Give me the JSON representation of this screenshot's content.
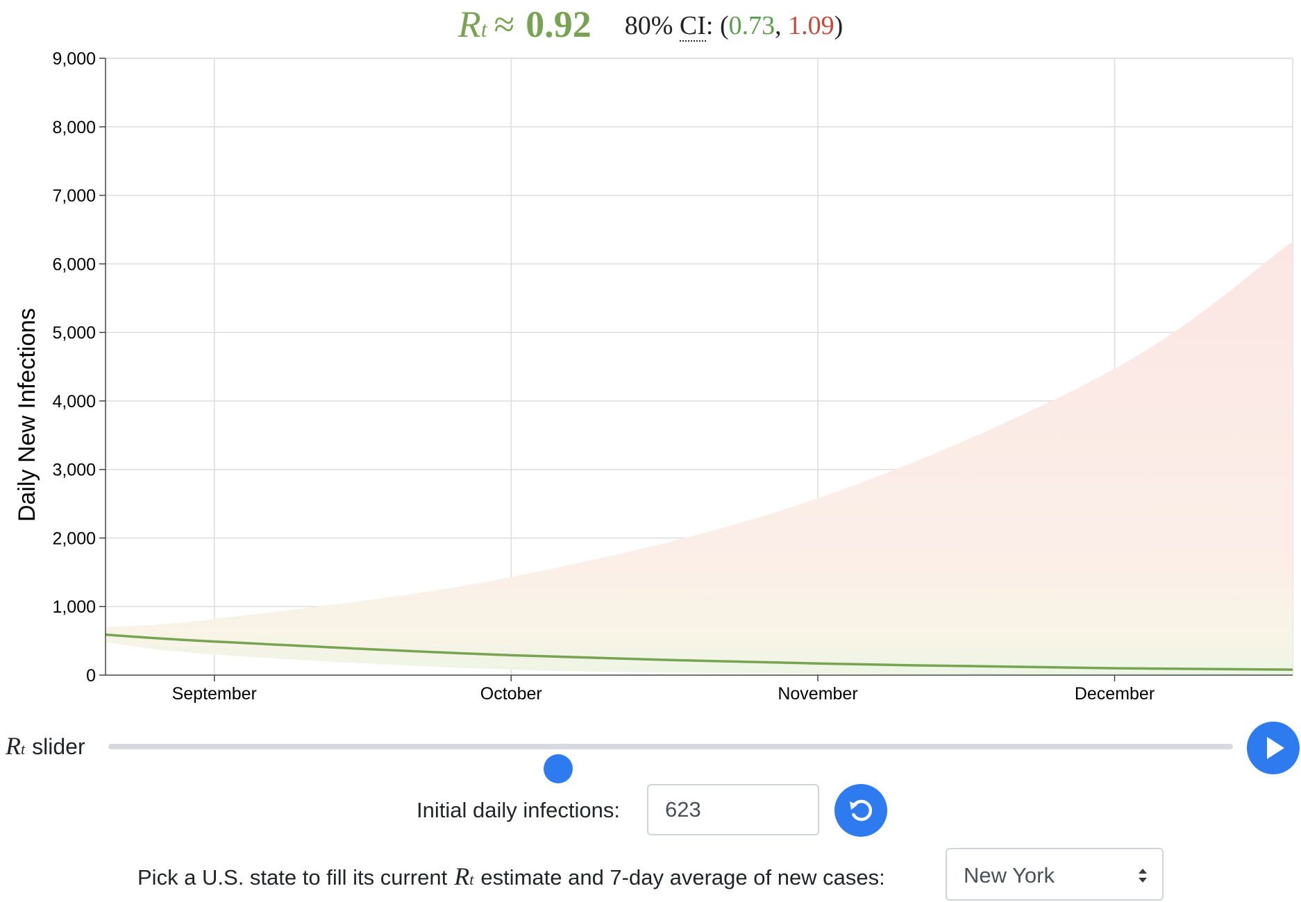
{
  "header": {
    "rt_symbol": "R",
    "rt_subscript": "t",
    "approx_symbol": "≈",
    "rt_value": "0.92",
    "ci_prefix": "80%",
    "ci_abbr": "CI",
    "ci_colon": ":",
    "ci_open": "(",
    "ci_low": "0.73",
    "ci_sep": ", ",
    "ci_high": "1.09",
    "ci_close": ")"
  },
  "chart_data": {
    "type": "area",
    "title": "",
    "xlabel": "",
    "ylabel": "Daily New Infections",
    "x_start": "2020-08-21",
    "x_end": "2020-12-19",
    "xlim": [
      "2020-08-21",
      "2020-12-19"
    ],
    "ylim": [
      0,
      9000
    ],
    "y_ticks": [
      0,
      1000,
      2000,
      3000,
      4000,
      5000,
      6000,
      7000,
      8000,
      9000
    ],
    "y_tick_labels": [
      "0",
      "1,000",
      "2,000",
      "3,000",
      "4,000",
      "5,000",
      "6,000",
      "7,000",
      "8,000",
      "9,000"
    ],
    "x_ticks": [
      {
        "date": "2020-09-01",
        "label": "September"
      },
      {
        "date": "2020-10-01",
        "label": "October"
      },
      {
        "date": "2020-11-01",
        "label": "November"
      },
      {
        "date": "2020-12-01",
        "label": "December"
      }
    ],
    "grid": true,
    "series": [
      {
        "role": "median",
        "color": "#77a352",
        "x": [
          "2020-08-21",
          "2020-09-01",
          "2020-10-01",
          "2020-11-01",
          "2020-12-01",
          "2020-12-19"
        ],
        "y": [
          590,
          490,
          290,
          170,
          100,
          80
        ]
      }
    ],
    "band": {
      "role": "80% CI",
      "low_color": "#5a9e4a",
      "high_color": "#c9473a",
      "x": [
        "2020-08-21",
        "2020-09-01",
        "2020-10-01",
        "2020-11-01",
        "2020-12-01",
        "2020-12-19"
      ],
      "lower": [
        480,
        300,
        80,
        20,
        8,
        5
      ],
      "upper": [
        700,
        820,
        1430,
        2580,
        4470,
        6330
      ]
    }
  },
  "controls": {
    "slider_label_symbol": "R",
    "slider_label_subscript": "t",
    "slider_label_text": "slider",
    "slider_value_fraction": 0.4,
    "play_icon": "play-icon",
    "initial_label": "Initial daily infections:",
    "initial_value": "623",
    "reset_icon": "reset-icon",
    "state_label_prefix": "Pick a U.S. state to fill its current",
    "state_label_symbol": "R",
    "state_label_subscript": "t",
    "state_label_suffix": "estimate and 7-day average of new cases:",
    "state_value": "New York",
    "accent_color": "#2e7bf0"
  }
}
